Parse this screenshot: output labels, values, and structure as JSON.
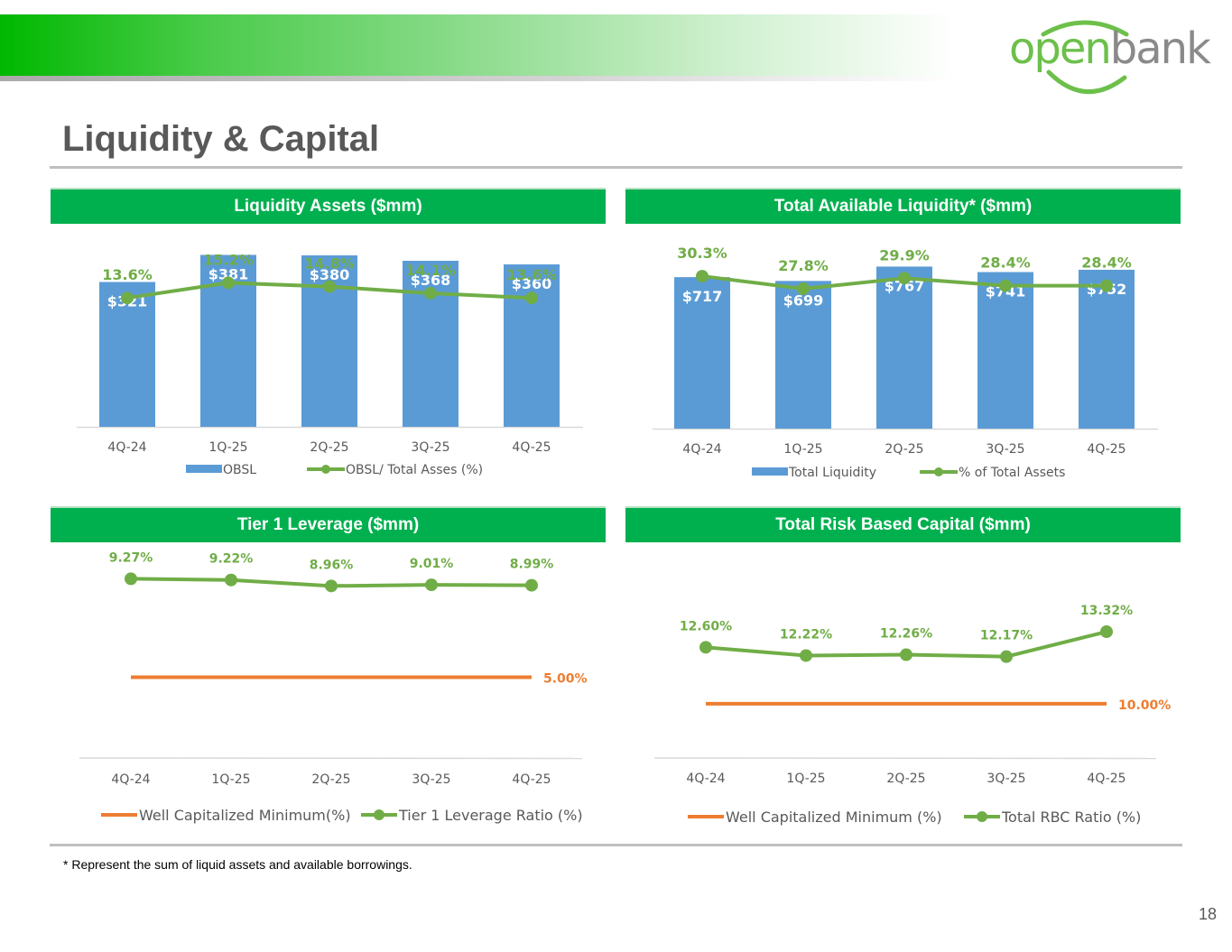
{
  "header": {
    "brand_open": "open",
    "brand_bank": "bank",
    "title": "Liquidity & Capital"
  },
  "colors": {
    "bar": "#5b9bd5",
    "green_line": "#70ad47",
    "orange_line": "#ed7d31",
    "header_green": "#00b04f",
    "axis_text": "#595959",
    "bar_label": "#ffffff"
  },
  "footnote": "* Represent the sum of liquid assets and available borrowings.",
  "page_number": "18",
  "chart_data": [
    {
      "id": "liquidity-assets",
      "type": "bar",
      "title": "Liquidity Assets ($mm)",
      "categories": [
        "4Q-24",
        "1Q-25",
        "2Q-25",
        "3Q-25",
        "4Q-25"
      ],
      "series": [
        {
          "name": "OBSL",
          "kind": "bar",
          "values": [
            321,
            381,
            380,
            368,
            360
          ],
          "labels": [
            "$321",
            "$381",
            "$380",
            "$368",
            "$360"
          ]
        },
        {
          "name": "OBSL/ Total Asses (%)",
          "kind": "line",
          "axis": "secondary",
          "values": [
            13.6,
            15.2,
            14.8,
            14.1,
            13.6
          ],
          "labels": [
            "13.6%",
            "15.2%",
            "14.8%",
            "14.1%",
            "13.6%"
          ]
        }
      ],
      "ylim": [
        0,
        400
      ],
      "y2lim": [
        0,
        20
      ],
      "legend": "bottom"
    },
    {
      "id": "total-available-liquidity",
      "type": "bar",
      "title": "Total Available Liquidity* ($mm)",
      "categories": [
        "4Q-24",
        "1Q-25",
        "2Q-25",
        "3Q-25",
        "4Q-25"
      ],
      "series": [
        {
          "name": "Total Liquidity",
          "kind": "bar",
          "values": [
            717,
            699,
            767,
            741,
            752
          ],
          "labels": [
            "$717",
            "$699",
            "$767",
            "$741",
            "$752"
          ]
        },
        {
          "name": "% of Total Assets",
          "kind": "line",
          "axis": "secondary",
          "values": [
            30.3,
            27.8,
            29.9,
            28.4,
            28.4
          ],
          "labels": [
            "30.3%",
            "27.8%",
            "29.9%",
            "28.4%",
            "28.4%"
          ]
        }
      ],
      "ylim": [
        0,
        850
      ],
      "y2lim": [
        0,
        40
      ],
      "legend": "bottom"
    },
    {
      "id": "tier1-leverage",
      "type": "line",
      "title": "Tier 1 Leverage ($mm)",
      "categories": [
        "4Q-24",
        "1Q-25",
        "2Q-25",
        "3Q-25",
        "4Q-25"
      ],
      "series": [
        {
          "name": "Well Capitalized Minimum(%)",
          "kind": "flat",
          "color": "orange",
          "values": [
            5.0,
            5.0,
            5.0,
            5.0,
            5.0
          ],
          "end_label": "5.00%"
        },
        {
          "name": "Tier 1 Leverage Ratio (%)",
          "kind": "line",
          "color": "green",
          "values": [
            9.27,
            9.22,
            8.96,
            9.01,
            8.99
          ],
          "labels": [
            "9.27%",
            "9.22%",
            "8.96%",
            "9.01%",
            "8.99%"
          ]
        }
      ],
      "ylim": [
        1.5,
        10.5
      ],
      "legend": "bottom"
    },
    {
      "id": "total-risk-based-capital",
      "type": "line",
      "title": "Total Risk Based Capital ($mm)",
      "categories": [
        "4Q-24",
        "1Q-25",
        "2Q-25",
        "3Q-25",
        "4Q-25"
      ],
      "series": [
        {
          "name": "Well Capitalized Minimum (%)",
          "kind": "flat",
          "color": "orange",
          "values": [
            10.0,
            10.0,
            10.0,
            10.0,
            10.0
          ],
          "end_label": "10.00%"
        },
        {
          "name": "Total RBC Ratio (%)",
          "kind": "line",
          "color": "green",
          "values": [
            12.6,
            12.22,
            12.26,
            12.17,
            13.32
          ],
          "labels": [
            "12.60%",
            "12.22%",
            "12.26%",
            "12.17%",
            "13.32%"
          ]
        }
      ],
      "ylim": [
        7.5,
        15.4
      ],
      "legend": "bottom"
    }
  ]
}
